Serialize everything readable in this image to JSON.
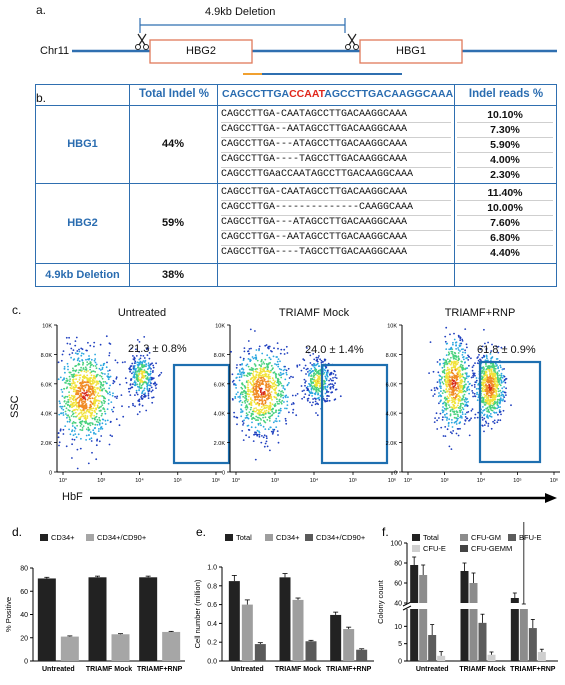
{
  "panel_a": {
    "label": "a.",
    "deletion_label": "4.9kb Deletion",
    "chromosome": "Chr11",
    "gene1": "HBG2",
    "gene2": "HBG1"
  },
  "panel_b": {
    "label": "b.",
    "headers": {
      "total": "Total Indel %",
      "seq_part1": "CAGCCTTGA",
      "seq_part2": "CCAAT",
      "seq_part3": "AGCCTTGACAAGGCAAA",
      "reads": "Indel reads %"
    },
    "groups": [
      {
        "gene": "HBG1",
        "total": "44%",
        "rows": [
          {
            "seq": "CAGCCTTGA-CAATAGCCTTGACAAGGCAAA",
            "reads": "10.10%"
          },
          {
            "seq": "CAGCCTTGA--AATAGCCTTGACAAGGCAAA",
            "reads": "7.30%"
          },
          {
            "seq": "CAGCCTTGA---ATAGCCTTGACAAGGCAAA",
            "reads": "5.90%"
          },
          {
            "seq": "CAGCCTTGA----TAGCCTTGACAAGGCAAA",
            "reads": "4.00%"
          },
          {
            "seq": "CAGCCTTGAaCCAATAGCCTTGACAAGGCAAA",
            "reads": "2.30%"
          }
        ]
      },
      {
        "gene": "HBG2",
        "total": "59%",
        "rows": [
          {
            "seq": "CAGCCTTGA-CAATAGCCTTGACAAGGCAAA",
            "reads": "11.40%"
          },
          {
            "seq": "CAGCCTTGA--------------CAAGGCAAA",
            "reads": "10.00%"
          },
          {
            "seq": "CAGCCTTGA---ATAGCCTTGACAAGGCAAA",
            "reads": "7.60%"
          },
          {
            "seq": "CAGCCTTGA--AATAGCCTTGACAAGGCAAA",
            "reads": "6.80%"
          },
          {
            "seq": "CAGCCTTGA----TAGCCTTGACAAGGCAAA",
            "reads": "4.40%"
          }
        ]
      },
      {
        "gene": "4.9kb Deletion",
        "total": "38%",
        "rows": []
      }
    ]
  },
  "panel_c": {
    "label": "c.",
    "ylabel": "SSC",
    "xlabel": "HbF",
    "y_ticks": [
      "10K",
      "8.0K",
      "6.0K",
      "4.0K",
      "2.0K",
      "0"
    ],
    "x_ticks": [
      "10°",
      "10³",
      "10⁴",
      "10⁵",
      "10⁶"
    ],
    "plots": [
      {
        "title": "Untreated",
        "pct": "21.3 ± 0.8%"
      },
      {
        "title": "TRIAMF Mock",
        "pct": "24.0 ± 1.4%"
      },
      {
        "title": "TRIAMF+RNP",
        "pct": "61.8 ± 0.9%"
      }
    ]
  },
  "chart_data": [
    {
      "panel": "d.",
      "type": "bar",
      "categories": [
        "Untreated",
        "TRIAMF Mock",
        "TRIAMF+RNP"
      ],
      "series": [
        {
          "name": "CD34+",
          "values": [
            71,
            72,
            72
          ],
          "errors": [
            1,
            1,
            1
          ],
          "color": "#222222"
        },
        {
          "name": "CD34+/CD90+",
          "values": [
            21,
            23,
            25
          ],
          "errors": [
            0.6,
            0.5,
            0.5
          ],
          "color": "#a6a6a6"
        }
      ],
      "ylabel": "% Positive",
      "yticks": [
        0,
        20,
        40,
        60,
        80
      ],
      "ylim": [
        0,
        80
      ]
    },
    {
      "panel": "e.",
      "type": "bar",
      "categories": [
        "Untreated",
        "TRIAMF Mock",
        "TRIAMF+RNP"
      ],
      "series": [
        {
          "name": "Total",
          "values": [
            0.85,
            0.89,
            0.49
          ],
          "errors": [
            0.06,
            0.04,
            0.03
          ],
          "color": "#222222"
        },
        {
          "name": "CD34+",
          "values": [
            0.6,
            0.65,
            0.34
          ],
          "errors": [
            0.05,
            0.02,
            0.02
          ],
          "color": "#9e9e9e"
        },
        {
          "name": "CD34+/CD90+",
          "values": [
            0.18,
            0.21,
            0.12
          ],
          "errors": [
            0.015,
            0.01,
            0.01
          ],
          "color": "#5a5a5a"
        }
      ],
      "ylabel": "Cell number (million)",
      "yticks": [
        "0.0",
        "0.2",
        "0.4",
        "0.6",
        "0.8",
        "1.0"
      ],
      "ylim": [
        0,
        1.0
      ]
    },
    {
      "panel": "f.",
      "type": "bar",
      "categories": [
        "Untreated",
        "TRIAMF Mock",
        "TRIAMF+RNP"
      ],
      "series": [
        {
          "name": "Total",
          "values": [
            78,
            72,
            45
          ],
          "errors": [
            8,
            8,
            5
          ],
          "color": "#222222"
        },
        {
          "name": "CFU-GM",
          "values": [
            68,
            60,
            34
          ],
          "errors": [
            10,
            10,
            5
          ],
          "color": "#8c8c8c"
        },
        {
          "name": "BFU-E",
          "values": [
            7.5,
            11,
            9.5
          ],
          "errors": [
            3,
            2.5,
            2.5
          ],
          "color": "#5c5c5c"
        },
        {
          "name": "CFU-E",
          "values": [
            1.5,
            1.8,
            2.6
          ],
          "errors": [
            1.2,
            0.8,
            0.8
          ],
          "color": "#cfcfcf"
        },
        {
          "name": "CFU-GEMM",
          "values": [
            0.2,
            0.2,
            0.2
          ],
          "errors": [
            0,
            0,
            0
          ],
          "color": "#444444"
        }
      ],
      "ylabel": "Colony count",
      "yticks_upper": [
        40,
        60,
        80,
        100
      ],
      "yticks_lower": [
        0,
        5,
        10
      ],
      "axis_break": [
        15,
        40
      ]
    }
  ]
}
